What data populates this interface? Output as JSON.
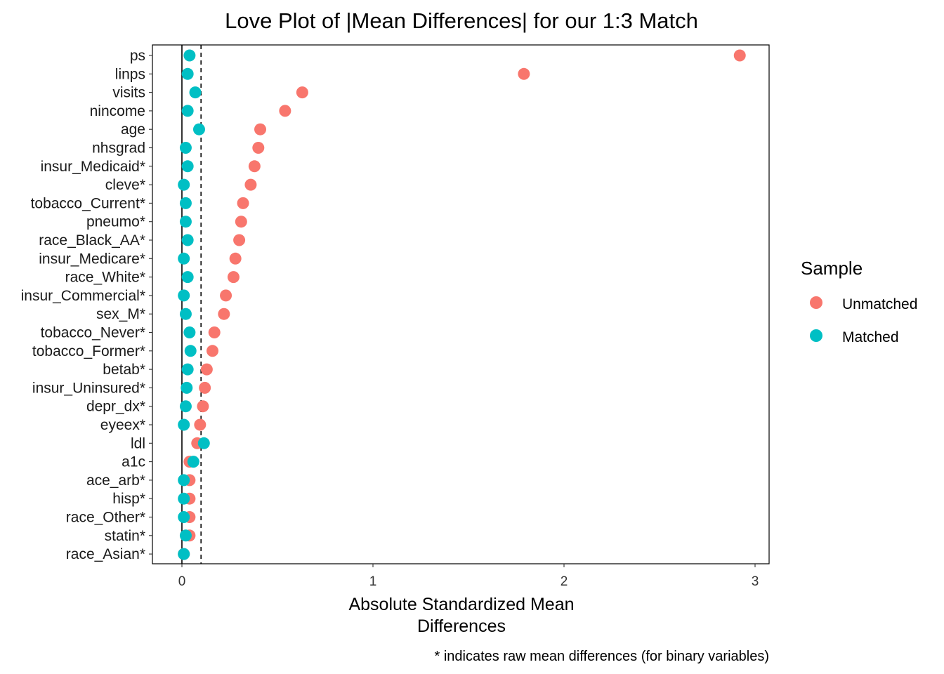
{
  "chart_data": {
    "type": "scatter",
    "title": "Love Plot of |Mean Differences| for our 1:3 Match",
    "xlabel_lines": [
      "Absolute Standardized Mean",
      "Differences"
    ],
    "caption": "* indicates raw mean differences (for binary variables)",
    "xlim": [
      -0.15,
      3.07
    ],
    "xticks": [
      0,
      1,
      2,
      3
    ],
    "xtick_labels": [
      "0",
      "1",
      "2",
      "3"
    ],
    "threshold": 0.1,
    "grid": false,
    "legend_position": "right",
    "legend_title": "Sample",
    "categories": [
      "ps",
      "linps",
      "visits",
      "nincome",
      "age",
      "nhsgrad",
      "insur_Medicaid*",
      "cleve*",
      "tobacco_Current*",
      "pneumo*",
      "race_Black_AA*",
      "insur_Medicare*",
      "race_White*",
      "insur_Commercial*",
      "sex_M*",
      "tobacco_Never*",
      "tobacco_Former*",
      "betab*",
      "insur_Uninsured*",
      "depr_dx*",
      "eyeex*",
      "ldl",
      "a1c",
      "ace_arb*",
      "hisp*",
      "race_Other*",
      "statin*",
      "race_Asian*"
    ],
    "series": [
      {
        "name": "Unmatched",
        "color": "#F8766D",
        "values": [
          2.92,
          1.79,
          0.63,
          0.54,
          0.41,
          0.4,
          0.38,
          0.36,
          0.32,
          0.31,
          0.3,
          0.28,
          0.27,
          0.23,
          0.22,
          0.17,
          0.16,
          0.13,
          0.12,
          0.11,
          0.095,
          0.08,
          0.04,
          0.04,
          0.04,
          0.04,
          0.04,
          0.01
        ]
      },
      {
        "name": "Matched",
        "color": "#00BFC4",
        "values": [
          0.04,
          0.03,
          0.07,
          0.03,
          0.09,
          0.02,
          0.03,
          0.01,
          0.02,
          0.02,
          0.03,
          0.01,
          0.03,
          0.01,
          0.02,
          0.04,
          0.045,
          0.03,
          0.025,
          0.02,
          0.01,
          0.115,
          0.06,
          0.01,
          0.01,
          0.01,
          0.02,
          0.01
        ]
      }
    ]
  }
}
